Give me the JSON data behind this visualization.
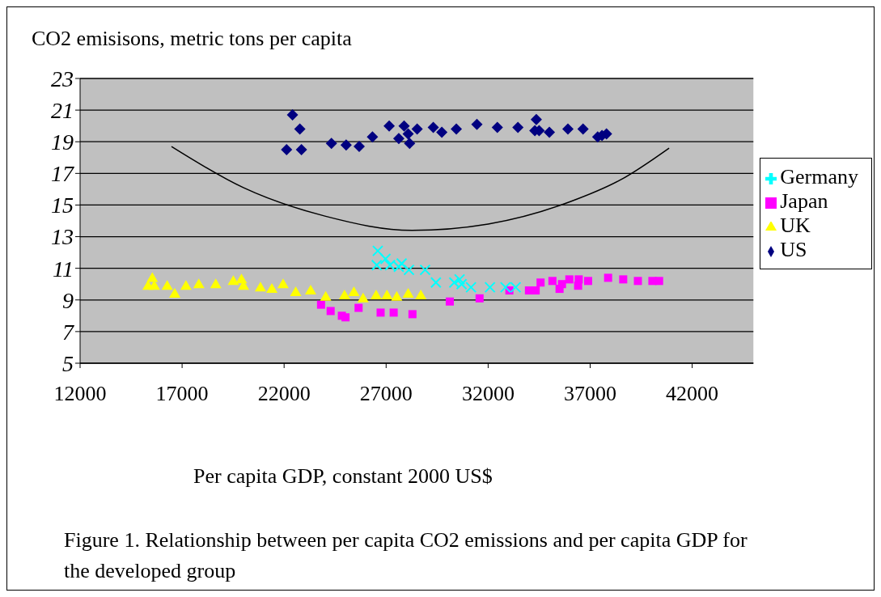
{
  "chart_data": {
    "type": "scatter",
    "ylabel": "CO2 emisisons, metric tons per capita",
    "xlabel": "Per capita GDP, constant 2000 US$",
    "annotations": [
      "Figure 1. Relationship between per capita CO2 emissions and per capita GDP for the developed group"
    ],
    "xlim": [
      12000,
      45000
    ],
    "xticks": [
      12000,
      17000,
      22000,
      27000,
      32000,
      37000,
      42000
    ],
    "ylim": [
      5,
      23
    ],
    "yticks": [
      5,
      7,
      9,
      11,
      13,
      15,
      17,
      19,
      21,
      23
    ],
    "grid": "y",
    "legend": "right",
    "series": [
      {
        "name": "US",
        "color": "#000080",
        "marker": "diamond",
        "x": [
          22410,
          22770,
          22120,
          22850,
          24320,
          25040,
          25680,
          26330,
          27150,
          27620,
          27880,
          28080,
          28150,
          28520,
          29310,
          29730,
          30440,
          31450,
          32450,
          33460,
          34360,
          34290,
          34500,
          35000,
          35910,
          36650,
          37370,
          37580,
          37800
        ],
        "values": [
          20.7,
          19.8,
          18.5,
          18.5,
          18.9,
          18.8,
          18.7,
          19.3,
          20.0,
          19.2,
          20.0,
          19.5,
          18.9,
          19.8,
          19.9,
          19.6,
          19.8,
          20.1,
          19.9,
          19.9,
          20.4,
          19.7,
          19.7,
          19.6,
          19.8,
          19.8,
          19.3,
          19.4,
          19.5
        ]
      },
      {
        "name": "Japan",
        "color": "#ff00ff",
        "marker": "square",
        "x": [
          23810,
          24280,
          24830,
          25010,
          25650,
          26730,
          27370,
          28290,
          30120,
          31580,
          33040,
          34000,
          34330,
          34570,
          35150,
          35500,
          35620,
          35980,
          36410,
          36440,
          36900,
          37880,
          38620,
          39340,
          40050,
          40380
        ],
        "values": [
          8.7,
          8.3,
          8.0,
          7.9,
          8.5,
          8.2,
          8.2,
          8.1,
          8.9,
          9.1,
          9.6,
          9.6,
          9.6,
          10.1,
          10.2,
          9.7,
          10.0,
          10.3,
          9.9,
          10.3,
          10.2,
          10.4,
          10.3,
          10.2,
          10.2,
          10.2
        ]
      },
      {
        "name": "UK",
        "color": "#ffff00",
        "marker": "triangle",
        "x": [
          15540,
          15330,
          15640,
          16270,
          16640,
          17190,
          17820,
          18650,
          19510,
          19910,
          20010,
          20840,
          21400,
          21950,
          22570,
          23300,
          24040,
          24960,
          25420,
          25870,
          26510,
          27040,
          27520,
          28080,
          28700
        ],
        "values": [
          10.4,
          9.9,
          9.9,
          9.9,
          9.4,
          9.9,
          10.0,
          10.0,
          10.2,
          10.3,
          9.9,
          9.8,
          9.7,
          10.0,
          9.5,
          9.6,
          9.2,
          9.3,
          9.5,
          9.1,
          9.3,
          9.3,
          9.2,
          9.4,
          9.3
        ]
      },
      {
        "name": "Germany",
        "color": "#00ffff",
        "marker": "cross",
        "x": [
          26590,
          26970,
          26540,
          27190,
          27760,
          27620,
          28120,
          28910,
          29440,
          30340,
          30600,
          30700,
          31160,
          32090,
          32850,
          33350
        ],
        "values": [
          12.1,
          11.6,
          11.2,
          11.2,
          11.3,
          11.1,
          10.9,
          10.9,
          10.1,
          10.1,
          10.3,
          10.0,
          9.8,
          9.8,
          9.8,
          9.8
        ]
      },
      {
        "type": "line",
        "color": "#000000",
        "marker": "none",
        "x": [
          16480,
          20000,
          24000,
          28270,
          32000,
          36000,
          38500,
          40870
        ],
        "values": [
          18.7,
          16.1,
          14.3,
          13.4,
          13.8,
          15.2,
          16.6,
          18.6
        ]
      }
    ]
  }
}
